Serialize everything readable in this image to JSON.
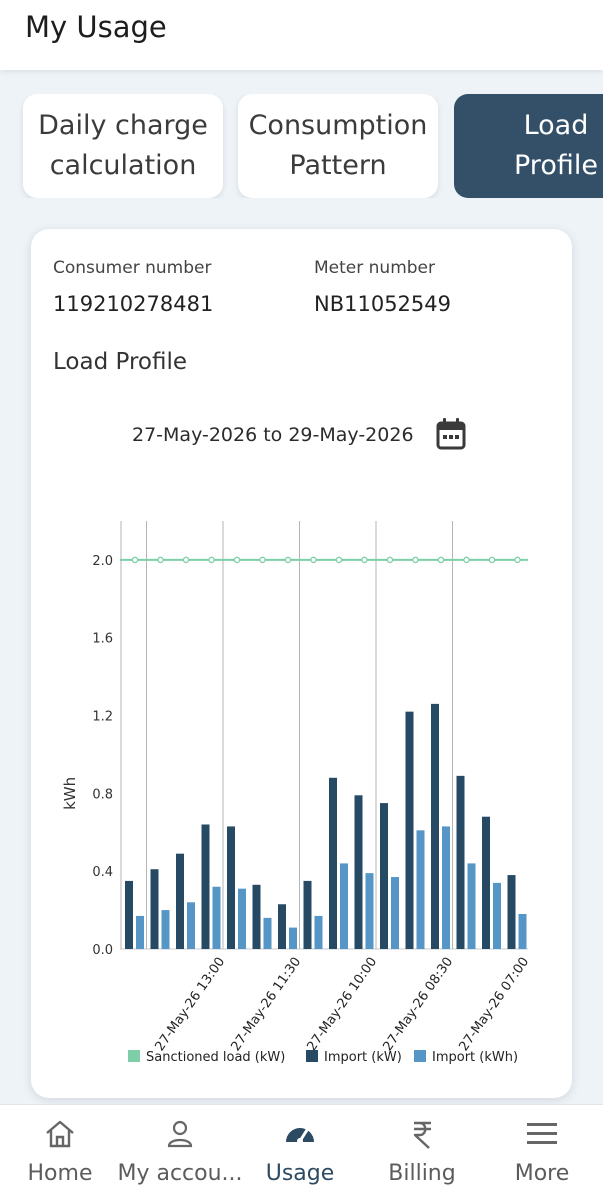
{
  "header": {
    "title": "My Usage"
  },
  "tabs": [
    {
      "line1": "Daily charge",
      "line2": "calculation",
      "active": false
    },
    {
      "line1": "Consumption",
      "line2": "Pattern",
      "active": false
    },
    {
      "line1": "Load",
      "line2": "Profile",
      "active": true
    }
  ],
  "card": {
    "consumer_label": "Consumer number",
    "consumer_value": "119210278481",
    "meter_label": "Meter number",
    "meter_value": "NB11052549",
    "section_title": "Load Profile",
    "date_range": "27-May-2026 to 29-May-2026",
    "calendar_icon": "calendar-icon"
  },
  "chart_data": {
    "type": "bar",
    "ylabel": "kWh",
    "ylim": [
      0,
      2.2
    ],
    "yticks": [
      "0.0",
      "0.4",
      "0.8",
      "1.2",
      "1.6",
      "2.0"
    ],
    "xtick_labels": [
      "27-May-26 13:00",
      "27-May-26 11:30",
      "27-May-26 10:00",
      "27-May-26 08:30",
      "27-May-26 07:00"
    ],
    "series": [
      {
        "name": "Import (kW)",
        "color": "#264a63",
        "values": [
          0.35,
          0.41,
          0.49,
          0.64,
          0.63,
          0.33,
          0.23,
          0.35,
          0.88,
          0.79,
          0.75,
          1.22,
          1.26,
          0.89,
          0.68,
          0.38
        ]
      },
      {
        "name": "Import (kWh)",
        "color": "#5596c6",
        "values": [
          0.17,
          0.2,
          0.24,
          0.32,
          0.31,
          0.16,
          0.11,
          0.17,
          0.44,
          0.39,
          0.37,
          0.61,
          0.63,
          0.44,
          0.34,
          0.18
        ]
      }
    ],
    "sanctioned_load": {
      "name": "Sanctioned load  (kW)",
      "value": 2.0,
      "color": "#7dcfa8"
    },
    "grid": "vertical",
    "legend": "bottom"
  },
  "nav": {
    "items": [
      {
        "label": "Home",
        "icon": "home-icon"
      },
      {
        "label": "My accou...",
        "icon": "user-icon"
      },
      {
        "label": "Usage",
        "icon": "gauge-icon",
        "active": true
      },
      {
        "label": "Billing",
        "icon": "rupee-icon"
      },
      {
        "label": "More",
        "icon": "menu-icon"
      }
    ]
  }
}
